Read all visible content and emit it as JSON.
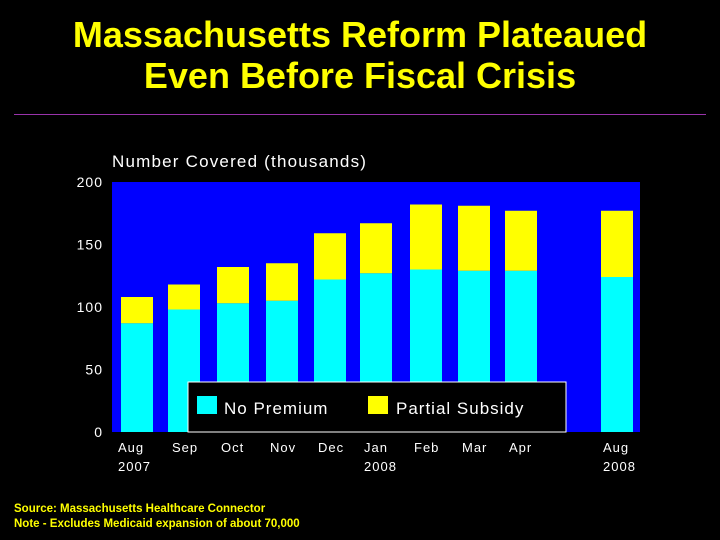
{
  "title": {
    "line1": "Massachusetts Reform Plateaued",
    "line2": "Even Before Fiscal Crisis"
  },
  "footer": {
    "source": "Source: Massachusetts Healthcare Connector",
    "note": "Note - Excludes Medicaid expansion of about 70,000"
  },
  "colors": {
    "background": "#000000",
    "plot_area": "#0000ff",
    "no_premium": "#00ffff",
    "partial_subsidy": "#ffff00",
    "title": "#ffff00",
    "rule": "#9933aa"
  },
  "chart_data": {
    "type": "bar",
    "stacked": true,
    "title": "Number Covered (thousands)",
    "categories": [
      "Aug 2007",
      "Sep",
      "Oct",
      "Nov",
      "Dec",
      "Jan 2008",
      "Feb",
      "Mar",
      "Apr",
      "Aug 2008"
    ],
    "tick_labels": [
      [
        "Aug",
        "2007"
      ],
      [
        "Sep"
      ],
      [
        "Oct"
      ],
      [
        "Nov"
      ],
      [
        "Dec"
      ],
      [
        "Jan",
        "2008"
      ],
      [
        "Feb"
      ],
      [
        "Mar"
      ],
      [
        "Apr"
      ],
      [
        "Aug",
        "2008"
      ]
    ],
    "series": [
      {
        "name": "No Premium",
        "values": [
          87,
          98,
          103,
          105,
          122,
          127,
          130,
          129,
          129,
          124
        ]
      },
      {
        "name": "Partial Subsidy",
        "values": [
          21,
          20,
          29,
          30,
          37,
          40,
          52,
          52,
          48,
          53
        ]
      }
    ],
    "ylim": [
      0,
      200
    ],
    "yticks": [
      0,
      50,
      100,
      150,
      200
    ],
    "legend_position": "bottom-center",
    "grid": false
  }
}
